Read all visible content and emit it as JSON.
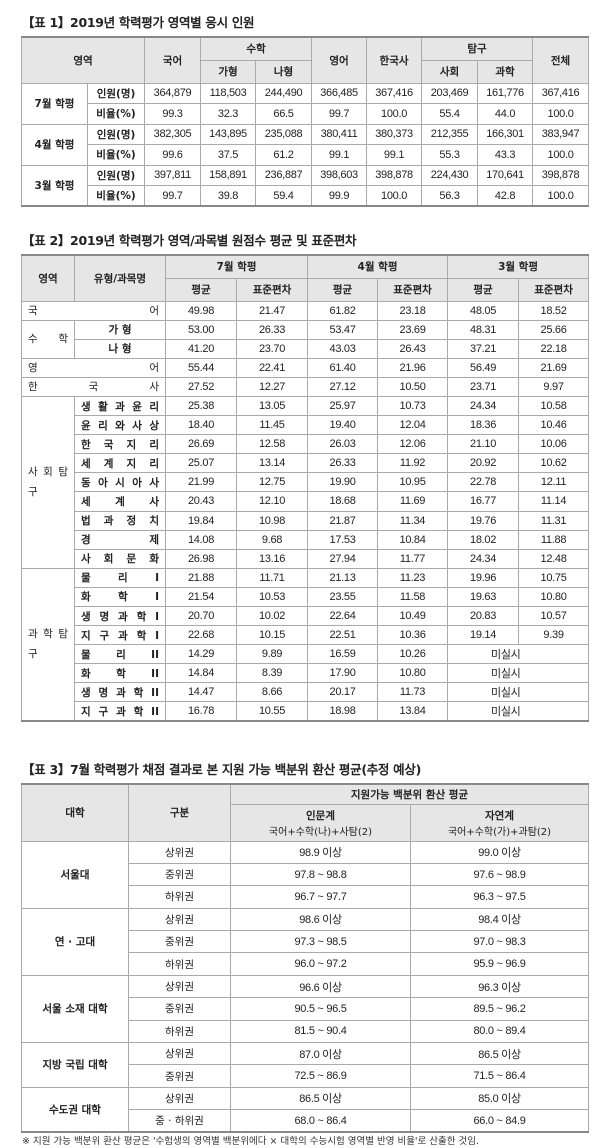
{
  "table1": {
    "title": "【표 1】2019년 학력평가 영역별 응시 인원",
    "headers": {
      "area": "영역",
      "korean": "국어",
      "math": "수학",
      "math_ga": "가형",
      "math_na": "나형",
      "english": "영어",
      "history": "한국사",
      "inquiry": "탐구",
      "social": "사회",
      "science": "과학",
      "total": "전체"
    },
    "rows": [
      {
        "term": "7월 학평",
        "count_label": "인원(명)",
        "counts": [
          "364,879",
          "118,503",
          "244,490",
          "366,485",
          "367,416",
          "203,469",
          "161,776",
          "367,416"
        ],
        "ratio_label": "비율(%)",
        "ratios": [
          "99.3",
          "32.3",
          "66.5",
          "99.7",
          "100.0",
          "55.4",
          "44.0",
          "100.0"
        ]
      },
      {
        "term": "4월 학평",
        "count_label": "인원(명)",
        "counts": [
          "382,305",
          "143,895",
          "235,088",
          "380,411",
          "380,373",
          "212,355",
          "166,301",
          "383,947"
        ],
        "ratio_label": "비율(%)",
        "ratios": [
          "99.6",
          "37.5",
          "61.2",
          "99.1",
          "99.1",
          "55.3",
          "43.3",
          "100.0"
        ]
      },
      {
        "term": "3월 학평",
        "count_label": "인원(명)",
        "counts": [
          "397,811",
          "158,891",
          "236,887",
          "398,603",
          "398,878",
          "224,430",
          "170,641",
          "398,878"
        ],
        "ratio_label": "비율(%)",
        "ratios": [
          "99.7",
          "39.8",
          "59.4",
          "99.9",
          "100.0",
          "56.3",
          "42.8",
          "100.0"
        ]
      }
    ]
  },
  "table2": {
    "title": "【표 2】2019년 학력평가 영역/과목별 원점수 평균 및 표준편차",
    "headers": {
      "area": "영역",
      "subject": "유형/과목명",
      "terms": [
        "7월 학평",
        "4월 학평",
        "3월 학평"
      ],
      "mean": "평균",
      "sd": "표준편차"
    },
    "groups": [
      {
        "area": "국 어",
        "single": true,
        "rows": [
          {
            "values": [
              "49.98",
              "21.47",
              "61.82",
              "23.18",
              "48.05",
              "18.52"
            ]
          }
        ]
      },
      {
        "area": "수 학",
        "rows": [
          {
            "subject": "가 형",
            "values": [
              "53.00",
              "26.33",
              "53.47",
              "23.69",
              "48.31",
              "25.66"
            ]
          },
          {
            "subject": "나 형",
            "values": [
              "41.20",
              "23.70",
              "43.03",
              "26.43",
              "37.21",
              "22.18"
            ]
          }
        ]
      },
      {
        "area": "영 어",
        "single": true,
        "rows": [
          {
            "values": [
              "55.44",
              "22.41",
              "61.40",
              "21.96",
              "56.49",
              "21.69"
            ]
          }
        ]
      },
      {
        "area": "한 국 사",
        "single": true,
        "rows": [
          {
            "values": [
              "27.52",
              "12.27",
              "27.12",
              "10.50",
              "23.71",
              "9.97"
            ]
          }
        ]
      },
      {
        "area": "사 회 탐 구",
        "rows": [
          {
            "subject": "생 활 과 윤 리",
            "values": [
              "25.38",
              "13.05",
              "25.97",
              "10.73",
              "24.34",
              "10.58"
            ]
          },
          {
            "subject": "윤 리 와 사 상",
            "values": [
              "18.40",
              "11.45",
              "19.40",
              "12.04",
              "18.36",
              "10.46"
            ]
          },
          {
            "subject": "한 국 지 리",
            "values": [
              "26.69",
              "12.58",
              "26.03",
              "12.06",
              "21.10",
              "10.06"
            ]
          },
          {
            "subject": "세 계 지 리",
            "values": [
              "25.07",
              "13.14",
              "26.33",
              "11.92",
              "20.92",
              "10.62"
            ]
          },
          {
            "subject": "동 아 시 아 사",
            "values": [
              "21.99",
              "12.75",
              "19.90",
              "10.95",
              "22.78",
              "12.11"
            ]
          },
          {
            "subject": "세 계 사",
            "values": [
              "20.43",
              "12.10",
              "18.68",
              "11.69",
              "16.77",
              "11.14"
            ]
          },
          {
            "subject": "법 과 정 치",
            "values": [
              "19.84",
              "10.98",
              "21.87",
              "11.34",
              "19.76",
              "11.31"
            ]
          },
          {
            "subject": "경 제",
            "values": [
              "14.08",
              "9.68",
              "17.53",
              "10.84",
              "18.02",
              "11.88"
            ]
          },
          {
            "subject": "사 회 문 화",
            "values": [
              "26.98",
              "13.16",
              "27.94",
              "11.77",
              "24.34",
              "12.48"
            ]
          }
        ]
      },
      {
        "area": "과 학 탐 구",
        "rows": [
          {
            "subject": "물 리 I",
            "values": [
              "21.88",
              "11.71",
              "21.13",
              "11.23",
              "19.96",
              "10.75"
            ]
          },
          {
            "subject": "화 학 I",
            "values": [
              "21.54",
              "10.53",
              "23.55",
              "11.58",
              "19.63",
              "10.80"
            ]
          },
          {
            "subject": "생 명 과 학 I",
            "values": [
              "20.70",
              "10.02",
              "22.64",
              "10.49",
              "20.83",
              "10.57"
            ]
          },
          {
            "subject": "지 구 과 학 I",
            "values": [
              "22.68",
              "10.15",
              "22.51",
              "10.36",
              "19.14",
              "9.39"
            ]
          },
          {
            "subject": "물 리 II",
            "values": [
              "14.29",
              "9.89",
              "16.59",
              "10.26",
              "미실시"
            ]
          },
          {
            "subject": "화 학 II",
            "values": [
              "14.84",
              "8.39",
              "17.90",
              "10.80",
              "미실시"
            ]
          },
          {
            "subject": "생 명 과 학 II",
            "values": [
              "14.47",
              "8.66",
              "20.17",
              "11.73",
              "미실시"
            ]
          },
          {
            "subject": "지 구 과 학 II",
            "values": [
              "16.78",
              "10.55",
              "18.98",
              "13.84",
              "미실시"
            ]
          }
        ]
      }
    ]
  },
  "table3": {
    "title": "【표 3】7월 학력평가 채점 결과로 본 지원 가능 백분위 환산 평균(추정 예상)",
    "headers": {
      "university": "대학",
      "category": "구분",
      "avg": "지원가능 백분위 환산 평균",
      "humanities": "인문계",
      "humanities_sub": "국어+수학(나)+사탐(2)",
      "natural": "자연계",
      "natural_sub": "국어+수학(가)+과탐(2)"
    },
    "groups": [
      {
        "university": "서울대",
        "rows": [
          [
            "상위권",
            "98.9 이상",
            "99.0 이상"
          ],
          [
            "중위권",
            "97.8 ~ 98.8",
            "97.6 ~ 98.9"
          ],
          [
            "하위권",
            "96.7 ~ 97.7",
            "96.3 ~ 97.5"
          ]
        ]
      },
      {
        "university": "연 · 고대",
        "rows": [
          [
            "상위권",
            "98.6 이상",
            "98.4 이상"
          ],
          [
            "중위권",
            "97.3 ~ 98.5",
            "97.0 ~ 98.3"
          ],
          [
            "하위권",
            "96.0 ~ 97.2",
            "95.9 ~ 96.9"
          ]
        ]
      },
      {
        "university": "서울 소재 대학",
        "rows": [
          [
            "상위권",
            "96.6 이상",
            "96.3 이상"
          ],
          [
            "중위권",
            "90.5 ~ 96.5",
            "89.5 ~ 96.2"
          ],
          [
            "하위권",
            "81.5 ~ 90.4",
            "80.0 ~ 89.4"
          ]
        ]
      },
      {
        "university": "지방 국립 대학",
        "rows": [
          [
            "상위권",
            "87.0 이상",
            "86.5 이상"
          ],
          [
            "중위권",
            "72.5 ~ 86.9",
            "71.5 ~ 86.4"
          ]
        ]
      },
      {
        "university": "수도권 대학",
        "rows": [
          [
            "상위권",
            "86.5 이상",
            "85.0 이상"
          ],
          [
            "중 · 하위권",
            "68.0 ~ 86.4",
            "66.0 ~ 84.9"
          ]
        ]
      }
    ],
    "footnote": "※ 지원 가능 백분위 환산 평균은 '수험생의 영역별 백분위에다 × 대학의 수능시험 영역별 반영 비율'로 산출한 것임."
  }
}
